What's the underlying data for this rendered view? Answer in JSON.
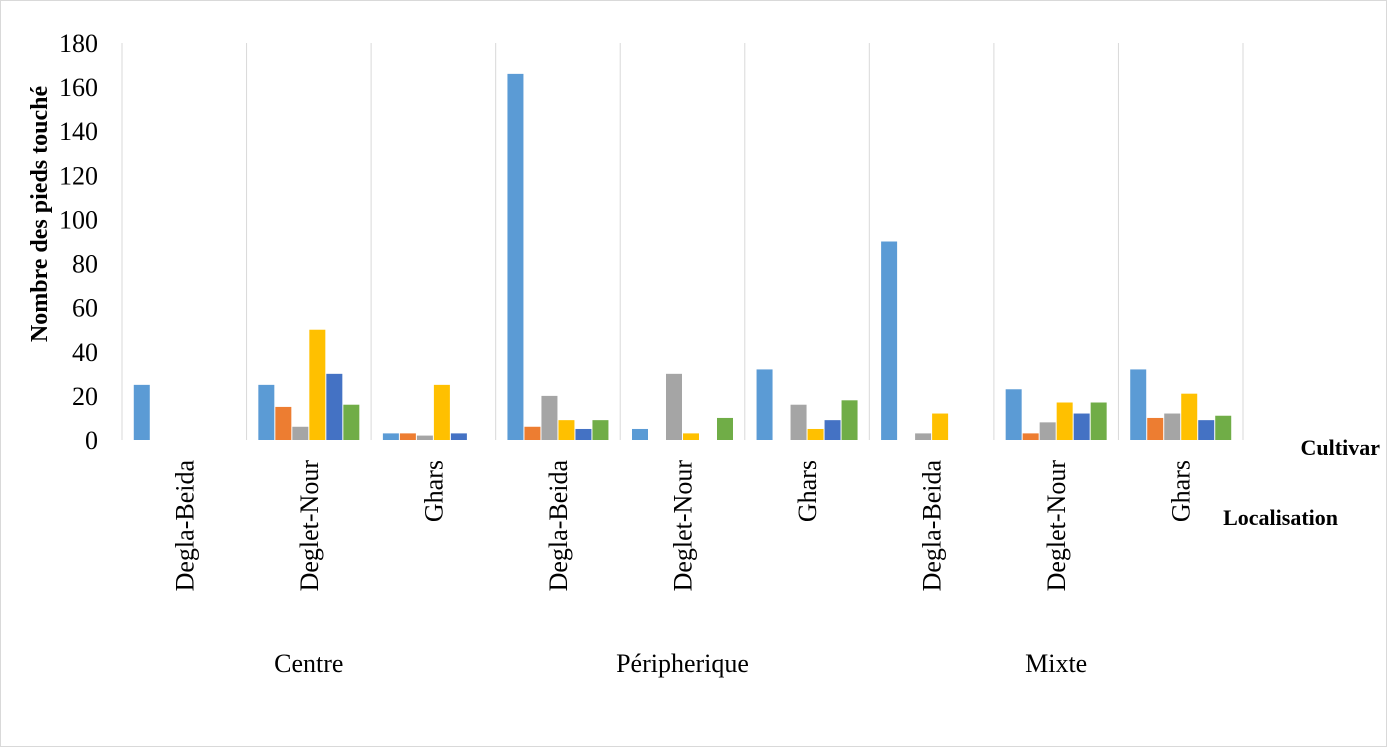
{
  "chart_data": {
    "type": "bar",
    "title": "",
    "ylabel": "Nombre  des pieds touché",
    "xlabel": "",
    "row_labels": [
      "Cultivar",
      "Localisation"
    ],
    "ylim": [
      0,
      180
    ],
    "yticks": [
      0,
      20,
      40,
      60,
      80,
      100,
      120,
      140,
      160,
      180
    ],
    "grid": "vertical",
    "legend": "none",
    "groups": [
      {
        "name": "Centre",
        "categories": [
          "Degla-Beida",
          "Deglet-Nour",
          "Ghars"
        ]
      },
      {
        "name": "Péripherique",
        "categories": [
          "Degla-Beida",
          "Deglet-Nour",
          "Ghars"
        ]
      },
      {
        "name": "Mixte",
        "categories": [
          "Degla-Beida",
          "Deglet-Nour",
          "Ghars"
        ]
      }
    ],
    "categories": [
      "Degla-Beida",
      "Deglet-Nour",
      "Ghars",
      "Degla-Beida",
      "Deglet-Nour",
      "Ghars",
      "Degla-Beida",
      "Deglet-Nour",
      "Ghars"
    ],
    "series": [
      {
        "color": "#5b9bd5",
        "values": [
          25,
          25,
          3,
          166,
          5,
          32,
          90,
          23,
          32
        ]
      },
      {
        "color": "#ed7d31",
        "values": [
          0,
          15,
          3,
          6,
          0,
          0,
          0,
          3,
          10
        ]
      },
      {
        "color": "#a5a5a5",
        "values": [
          0,
          6,
          2,
          20,
          30,
          16,
          3,
          8,
          12
        ]
      },
      {
        "color": "#ffc000",
        "values": [
          0,
          50,
          25,
          9,
          3,
          5,
          12,
          17,
          21
        ]
      },
      {
        "color": "#4472c4",
        "values": [
          0,
          30,
          3,
          5,
          0,
          9,
          0,
          12,
          9
        ]
      },
      {
        "color": "#70ad47",
        "values": [
          0,
          16,
          0,
          9,
          10,
          18,
          0,
          17,
          11
        ]
      }
    ]
  }
}
